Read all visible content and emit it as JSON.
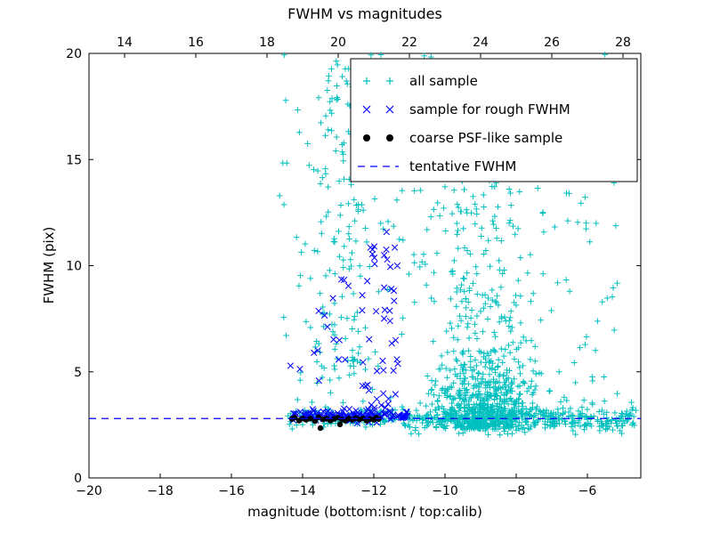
{
  "figure": {
    "background": "#ffffff"
  },
  "chart_data": {
    "type": "scatter",
    "title": "FWHM vs magnitudes",
    "xlabel": "magnitude (bottom:isnt / top:calib)",
    "ylabel": "FWHM (pix)",
    "xlim": [
      -20,
      -4.5
    ],
    "ylim": [
      0,
      20
    ],
    "grid": false,
    "axes": {
      "x_bottom": {
        "values": [
          -20,
          -18,
          -16,
          -14,
          -12,
          -10,
          -8,
          -6
        ],
        "labels": [
          "−20",
          "−18",
          "−16",
          "−14",
          "−12",
          "−10",
          "−8",
          "−6"
        ]
      },
      "x_top": {
        "values": [
          14,
          16,
          18,
          20,
          22,
          24,
          26,
          28
        ],
        "labels": [
          "14",
          "16",
          "18",
          "20",
          "22",
          "24",
          "26",
          "28"
        ],
        "offset_from_bottom": 33
      },
      "y": {
        "values": [
          0,
          5,
          10,
          15,
          20
        ],
        "labels": [
          "0",
          "5",
          "10",
          "15",
          "20"
        ]
      }
    },
    "tentative_fwhm": 2.8,
    "legend": {
      "position": "upper right",
      "entries": [
        {
          "label": "all sample",
          "marker": "plus",
          "color": "#00BFBF"
        },
        {
          "label": "sample for rough FWHM",
          "marker": "x",
          "color": "#0000FF"
        },
        {
          "label": "coarse PSF-like sample",
          "marker": "dot",
          "color": "#000000"
        },
        {
          "label": "tentative FWHM",
          "marker": "dashed-line",
          "color": "#0000FF"
        }
      ]
    },
    "series": [
      {
        "name": "all sample",
        "marker": "plus",
        "color": "#00BFBF",
        "seed": 101,
        "clusters": [
          {
            "n": 380,
            "x": {
              "dist": "uniform",
              "a": -14.5,
              "b": -4.6
            },
            "y": {
              "dist": "normal",
              "mean": 2.85,
              "sd": 0.22,
              "min": 2.2,
              "max": 3.6
            }
          },
          {
            "n": 700,
            "x": {
              "dist": "normal",
              "mean": -8.9,
              "sd": 0.8,
              "min": -10.8,
              "max": -7.0
            },
            "y": {
              "dist": "exp",
              "base": 2.3,
              "scale": 1.5,
              "max": 9.0
            }
          },
          {
            "n": 90,
            "x": {
              "dist": "normal",
              "mean": -8.8,
              "sd": 0.9,
              "min": -10.8,
              "max": -7.0
            },
            "y": {
              "dist": "uniform",
              "a": 8.0,
              "b": 14.5
            }
          },
          {
            "n": 260,
            "x": {
              "dist": "uniform",
              "a": -14.7,
              "b": -5.0
            },
            "y": {
              "dist": "uniform",
              "a": 3.0,
              "b": 20.0
            }
          },
          {
            "n": 110,
            "x": {
              "dist": "uniform",
              "a": -13.7,
              "b": -12.2
            },
            "y": {
              "dist": "uniform",
              "a": 3.5,
              "b": 19.5
            }
          },
          {
            "n": 40,
            "x": {
              "dist": "uniform",
              "a": -11.0,
              "b": -5.0
            },
            "y": {
              "dist": "uniform",
              "a": 2.0,
              "b": 2.5
            }
          },
          {
            "n": 60,
            "x": {
              "dist": "uniform",
              "a": -7.2,
              "b": -4.7
            },
            "y": {
              "dist": "exp",
              "base": 2.4,
              "scale": 0.5,
              "max": 5.5
            }
          }
        ]
      },
      {
        "name": "sample for rough FWHM",
        "marker": "x",
        "color": "#0000FF",
        "seed": 202,
        "clusters": [
          {
            "n": 120,
            "x": {
              "dist": "uniform",
              "a": -14.35,
              "b": -11.05
            },
            "y": {
              "dist": "normal",
              "mean": 2.95,
              "sd": 0.15,
              "min": 2.5,
              "max": 3.4
            }
          },
          {
            "n": 48,
            "x": {
              "dist": "uniform",
              "a": -12.35,
              "b": -11.3
            },
            "y": {
              "dist": "uniform",
              "a": 3.2,
              "b": 11.6
            }
          },
          {
            "n": 16,
            "x": {
              "dist": "uniform",
              "a": -14.35,
              "b": -12.4
            },
            "y": {
              "dist": "uniform",
              "a": 3.5,
              "b": 9.8
            }
          }
        ]
      },
      {
        "name": "coarse PSF-like sample",
        "marker": "dot",
        "color": "#000000",
        "points": [
          [
            -14.3,
            2.78
          ],
          [
            -14.22,
            2.84
          ],
          [
            -14.1,
            2.7
          ],
          [
            -14.0,
            2.8
          ],
          [
            -13.9,
            2.74
          ],
          [
            -13.78,
            2.8
          ],
          [
            -13.65,
            2.68
          ],
          [
            -13.55,
            2.86
          ],
          [
            -13.5,
            2.35
          ],
          [
            -13.42,
            2.76
          ],
          [
            -13.32,
            2.8
          ],
          [
            -13.22,
            2.7
          ],
          [
            -13.12,
            2.78
          ],
          [
            -13.02,
            2.84
          ],
          [
            -12.95,
            2.52
          ],
          [
            -12.9,
            2.76
          ],
          [
            -12.8,
            2.7
          ],
          [
            -12.7,
            2.8
          ],
          [
            -12.6,
            2.74
          ],
          [
            -12.5,
            2.82
          ],
          [
            -12.4,
            2.76
          ],
          [
            -12.3,
            2.8
          ],
          [
            -12.2,
            2.7
          ],
          [
            -12.1,
            2.78
          ],
          [
            -12.0,
            2.74
          ],
          [
            -11.93,
            2.84
          ],
          [
            -11.86,
            2.78
          ]
        ]
      },
      {
        "name": "tentative FWHM",
        "marker": "dashed-line",
        "color": "#0000FF",
        "hline": 2.8
      }
    ]
  }
}
